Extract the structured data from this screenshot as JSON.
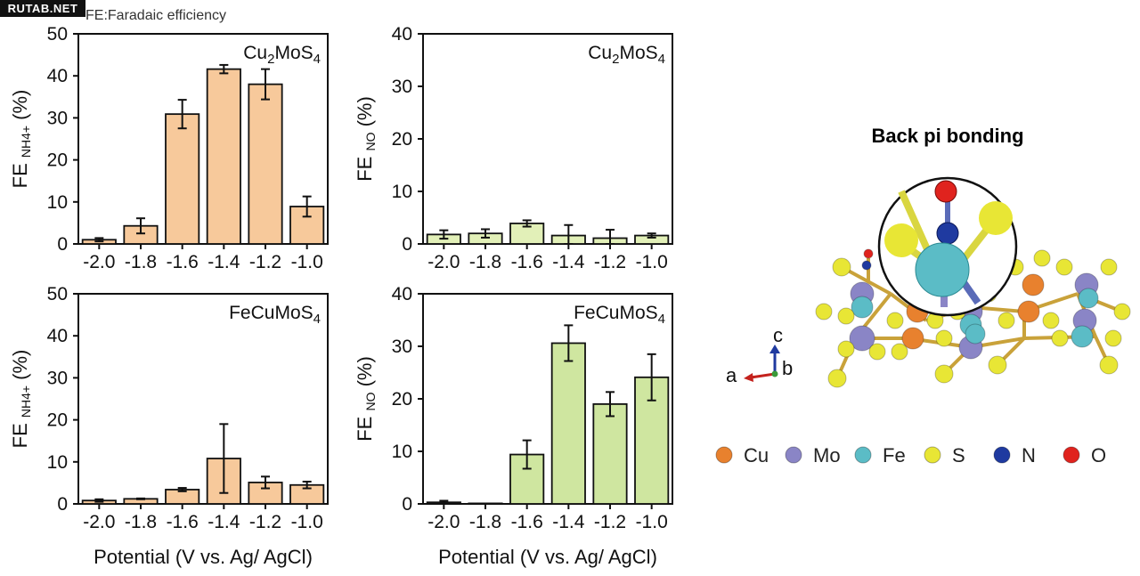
{
  "watermark": "RUTAB.NET",
  "note": "FE:Faradaic efficiency",
  "structure": {
    "title": "Back pi bonding",
    "axes": {
      "c": "c",
      "a": "a",
      "b": "b"
    },
    "legend": [
      {
        "label": "Cu",
        "color": "#e8812e"
      },
      {
        "label": "Mo",
        "color": "#8a85c6"
      },
      {
        "label": "Fe",
        "color": "#5bbcc6"
      },
      {
        "label": "S",
        "color": "#e8e635"
      },
      {
        "label": "N",
        "color": "#1f3aa0"
      },
      {
        "label": "O",
        "color": "#e0231e"
      }
    ]
  },
  "colors": {
    "orange_bar": "#f7c99b",
    "green_bar": "#e2f0b8",
    "green_bar_strong": "#cfe6a0"
  },
  "chart_data": [
    {
      "type": "bar",
      "panel_label": "Cu2MoS4",
      "ylabel": "FE NH4+ (%)",
      "xlabel": "",
      "categories": [
        "-2.0",
        "-1.8",
        "-1.6",
        "-1.4",
        "-1.2",
        "-1.0"
      ],
      "values": [
        1.0,
        4.3,
        30.9,
        41.6,
        38.0,
        8.9
      ],
      "errors": [
        0.4,
        1.8,
        3.4,
        1.0,
        3.6,
        2.4
      ],
      "ylim": [
        0,
        50
      ],
      "yticks": [
        "0",
        "10",
        "20",
        "30",
        "40",
        "50"
      ],
      "bar_color": "#f7c99b"
    },
    {
      "type": "bar",
      "panel_label": "Cu2MoS4",
      "ylabel": "FE NO (%)",
      "xlabel": "",
      "categories": [
        "-2.0",
        "-1.8",
        "-1.6",
        "-1.4",
        "-1.2",
        "-1.0"
      ],
      "values": [
        1.8,
        2.0,
        3.9,
        1.6,
        1.1,
        1.6
      ],
      "errors": [
        0.8,
        0.8,
        0.6,
        2.0,
        1.6,
        0.4
      ],
      "ylim": [
        0,
        40
      ],
      "yticks": [
        "0",
        "10",
        "20",
        "30",
        "40"
      ],
      "bar_color": "#e2f0b8"
    },
    {
      "type": "bar",
      "panel_label": "FeCuMoS4",
      "ylabel": "FE NH4+ (%)",
      "xlabel": "Potential (V vs. Ag/ AgCl)",
      "categories": [
        "-2.0",
        "-1.8",
        "-1.6",
        "-1.4",
        "-1.2",
        "-1.0"
      ],
      "values": [
        0.8,
        1.2,
        3.4,
        10.8,
        5.1,
        4.5
      ],
      "errors": [
        0.3,
        0.1,
        0.4,
        8.2,
        1.4,
        0.8
      ],
      "ylim": [
        0,
        50
      ],
      "yticks": [
        "0",
        "10",
        "20",
        "30",
        "40",
        "50"
      ],
      "bar_color": "#f7c99b"
    },
    {
      "type": "bar",
      "panel_label": "FeCuMoS4",
      "ylabel": "FE NO (%)",
      "xlabel": "Potential (V vs. Ag/ AgCl)",
      "categories": [
        "-2.0",
        "-1.8",
        "-1.6",
        "-1.4",
        "-1.2",
        "-1.0"
      ],
      "values": [
        0.3,
        0.1,
        9.4,
        30.6,
        19.0,
        24.1
      ],
      "errors": [
        0.3,
        0.0,
        2.7,
        3.4,
        2.3,
        4.4
      ],
      "ylim": [
        0,
        40
      ],
      "yticks": [
        "0",
        "10",
        "20",
        "30",
        "40"
      ],
      "bar_color": "#cfe6a0"
    }
  ]
}
